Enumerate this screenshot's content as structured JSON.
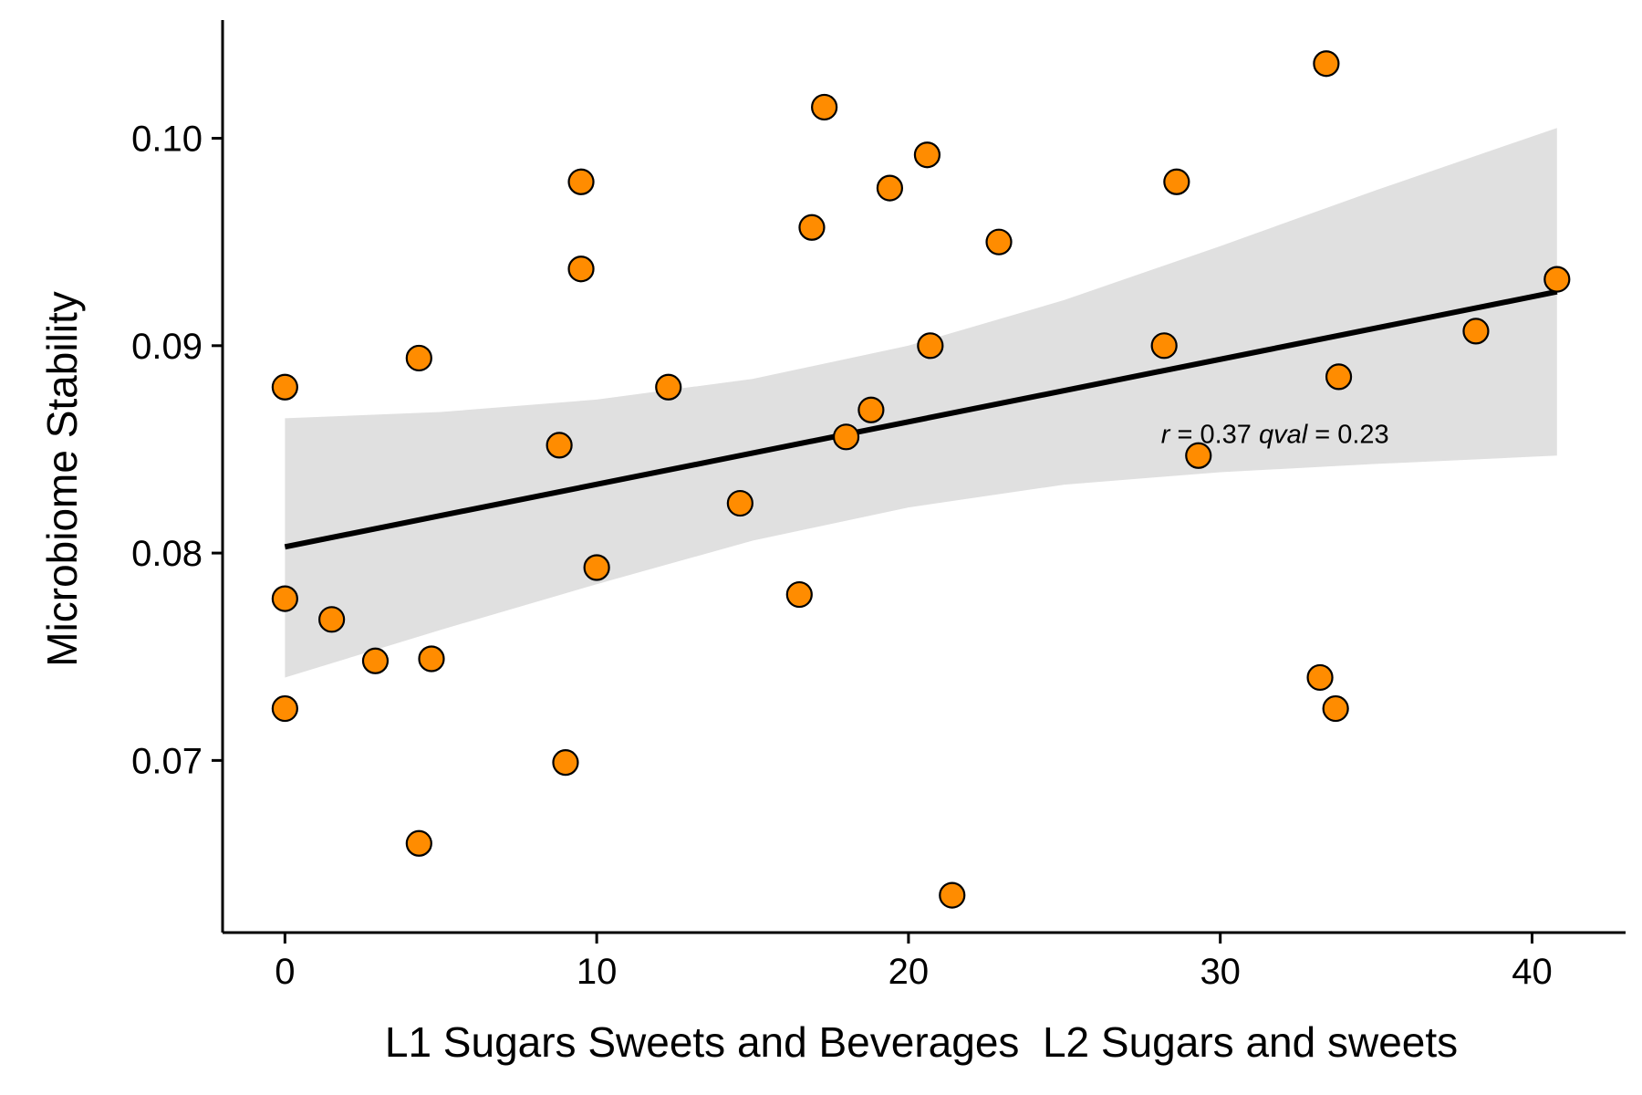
{
  "chart_data": {
    "type": "scatter",
    "xlabel": "L1 Sugars Sweets and Beverages  L2 Sugars and sweets",
    "ylabel": "Microbiome Stability",
    "xlim": [
      -2,
      43
    ],
    "ylim": [
      0.0617,
      0.1057
    ],
    "xticks": [
      0,
      10,
      20,
      30,
      40
    ],
    "yticks": [
      0.07,
      0.08,
      0.09,
      0.1
    ],
    "xtick_labels": [
      "0",
      "10",
      "20",
      "30",
      "40"
    ],
    "ytick_labels": [
      "0.07",
      "0.08",
      "0.09",
      "0.10"
    ],
    "grid": false,
    "point_color": "#FF8C00",
    "point_edge_color": "#000000",
    "fit_line_color": "#000000",
    "ci_band_color": "#e0e0e0",
    "points": [
      {
        "x": 0.0,
        "y": 0.088
      },
      {
        "x": 0.0,
        "y": 0.0778
      },
      {
        "x": 0.0,
        "y": 0.0725
      },
      {
        "x": 1.5,
        "y": 0.0768
      },
      {
        "x": 2.9,
        "y": 0.0748
      },
      {
        "x": 4.3,
        "y": 0.0894
      },
      {
        "x": 4.3,
        "y": 0.066
      },
      {
        "x": 4.7,
        "y": 0.0749
      },
      {
        "x": 8.8,
        "y": 0.0852
      },
      {
        "x": 9.0,
        "y": 0.0699
      },
      {
        "x": 9.5,
        "y": 0.0979
      },
      {
        "x": 9.5,
        "y": 0.0937
      },
      {
        "x": 10.0,
        "y": 0.0793
      },
      {
        "x": 12.3,
        "y": 0.088
      },
      {
        "x": 14.6,
        "y": 0.0824
      },
      {
        "x": 16.5,
        "y": 0.078
      },
      {
        "x": 16.9,
        "y": 0.0957
      },
      {
        "x": 17.3,
        "y": 0.1015
      },
      {
        "x": 18.0,
        "y": 0.0856
      },
      {
        "x": 18.8,
        "y": 0.0869
      },
      {
        "x": 19.4,
        "y": 0.0976
      },
      {
        "x": 20.6,
        "y": 0.0992
      },
      {
        "x": 20.7,
        "y": 0.09
      },
      {
        "x": 21.4,
        "y": 0.0635
      },
      {
        "x": 22.9,
        "y": 0.095
      },
      {
        "x": 28.2,
        "y": 0.09
      },
      {
        "x": 28.6,
        "y": 0.0979
      },
      {
        "x": 29.3,
        "y": 0.0847
      },
      {
        "x": 33.2,
        "y": 0.074
      },
      {
        "x": 33.4,
        "y": 0.1036
      },
      {
        "x": 33.7,
        "y": 0.0725
      },
      {
        "x": 33.8,
        "y": 0.0885
      },
      {
        "x": 38.2,
        "y": 0.0907
      },
      {
        "x": 40.8,
        "y": 0.0932
      }
    ],
    "fit_line": {
      "x": [
        0,
        40.8
      ],
      "y": [
        0.0803,
        0.0926
      ]
    },
    "ci_band": {
      "x": [
        0,
        5,
        10,
        15,
        20,
        25,
        30,
        35,
        40.8
      ],
      "upper": [
        0.0865,
        0.0868,
        0.0874,
        0.0884,
        0.09,
        0.0922,
        0.0948,
        0.0975,
        0.1005
      ],
      "lower": [
        0.074,
        0.0763,
        0.0785,
        0.0806,
        0.0822,
        0.0833,
        0.0839,
        0.0843,
        0.0847
      ]
    },
    "annotation": {
      "r_symbol": "r",
      "r_text": " = 0.37 ",
      "q_symbol": "qval",
      "q_text": " = 0.23",
      "x": 28.1,
      "y": 0.0853
    }
  }
}
